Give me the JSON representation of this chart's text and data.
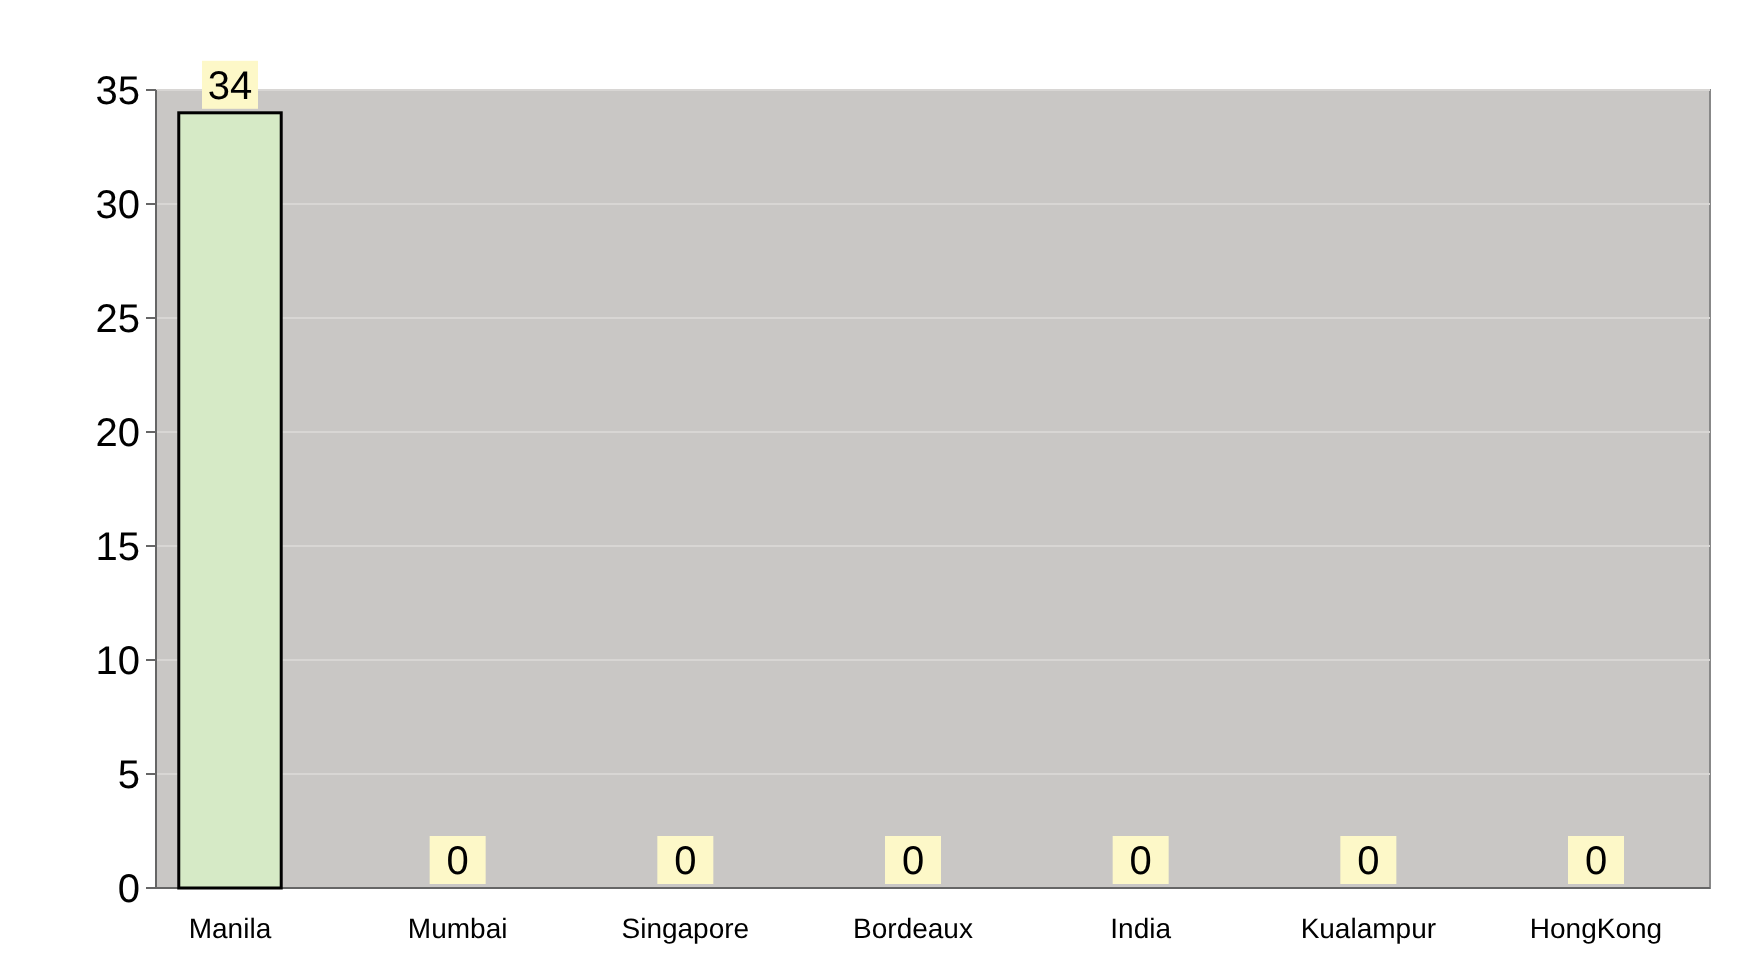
{
  "chart_data": {
    "type": "bar",
    "categories": [
      "Manila",
      "Mumbai",
      "Singapore",
      "Bordeaux",
      "India",
      "Kualampur",
      "HongKong"
    ],
    "values": [
      34,
      0,
      0,
      0,
      0,
      0,
      0
    ],
    "color": "#d6eac6",
    "ylim": [
      0,
      35
    ],
    "yticks": [
      0,
      5,
      10,
      15,
      20,
      25,
      30,
      35
    ],
    "grid": "y",
    "data_labels": true
  }
}
